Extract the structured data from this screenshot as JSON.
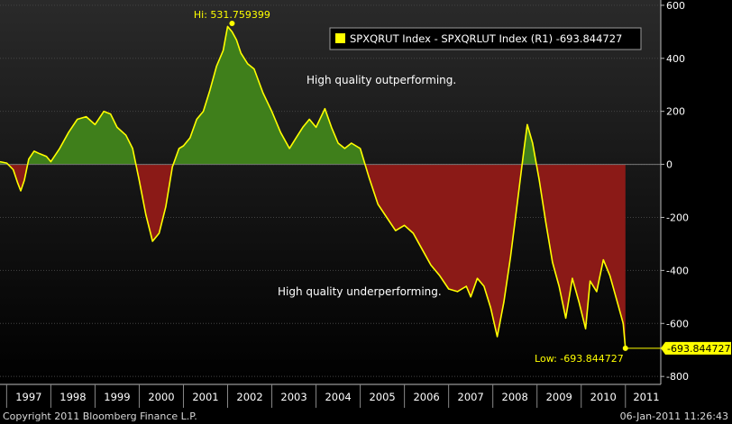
{
  "chart_data": {
    "type": "area",
    "series": [
      {
        "name": "SPXQRUT Index - SPXQRLUT Index (R1)",
        "last_value_label": "-693.844727",
        "x": [
          1996.85,
          1997.0,
          1997.15,
          1997.25,
          1997.32,
          1997.4,
          1997.5,
          1997.62,
          1997.75,
          1997.9,
          1998.0,
          1998.2,
          1998.4,
          1998.6,
          1998.8,
          1999.0,
          1999.2,
          1999.35,
          1999.5,
          1999.7,
          1999.85,
          2000.0,
          2000.15,
          2000.3,
          2000.45,
          2000.6,
          2000.75,
          2000.9,
          2001.0,
          2001.15,
          2001.3,
          2001.45,
          2001.6,
          2001.75,
          2001.9,
          2002.0,
          2002.1,
          2002.2,
          2002.3,
          2002.45,
          2002.6,
          2002.8,
          2003.0,
          2003.2,
          2003.4,
          2003.55,
          2003.7,
          2003.85,
          2004.0,
          2004.2,
          2004.35,
          2004.5,
          2004.65,
          2004.8,
          2005.0,
          2005.2,
          2005.4,
          2005.6,
          2005.8,
          2006.0,
          2006.2,
          2006.4,
          2006.6,
          2006.8,
          2007.0,
          2007.2,
          2007.4,
          2007.5,
          2007.65,
          2007.8,
          2007.95,
          2008.1,
          2008.25,
          2008.4,
          2008.55,
          2008.7,
          2008.78,
          2008.9,
          2009.05,
          2009.2,
          2009.35,
          2009.5,
          2009.65,
          2009.8,
          2009.95,
          2010.1,
          2010.2,
          2010.35,
          2010.5,
          2010.65,
          2010.8,
          2010.95,
          2011.0
        ],
        "values": [
          10,
          5,
          -20,
          -70,
          -100,
          -60,
          20,
          50,
          40,
          30,
          10,
          60,
          120,
          170,
          180,
          150,
          200,
          190,
          140,
          110,
          60,
          -60,
          -190,
          -290,
          -260,
          -160,
          -10,
          60,
          70,
          100,
          170,
          200,
          280,
          370,
          430,
          520,
          500,
          470,
          420,
          380,
          360,
          270,
          200,
          120,
          60,
          100,
          140,
          170,
          140,
          210,
          140,
          80,
          60,
          80,
          60,
          -50,
          -150,
          -200,
          -250,
          -230,
          -260,
          -320,
          -380,
          -420,
          -470,
          -480,
          -460,
          -500,
          -430,
          -460,
          -540,
          -650,
          -520,
          -350,
          -150,
          50,
          150,
          80,
          -60,
          -220,
          -370,
          -460,
          -580,
          -430,
          -520,
          -620,
          -440,
          -480,
          -360,
          -420,
          -510,
          -600,
          -694
        ]
      }
    ],
    "xlim": [
      1996.85,
      2011.8
    ],
    "ylim": [
      -830,
      620
    ],
    "y_ticks": [
      600,
      400,
      200,
      0,
      -200,
      -400,
      -600,
      -800
    ],
    "x_tick_labels": [
      "1997",
      "1998",
      "1999",
      "2000",
      "2001",
      "2002",
      "2003",
      "2004",
      "2005",
      "2006",
      "2007",
      "2008",
      "2009",
      "2010",
      "2011"
    ],
    "title": "",
    "xlabel": "",
    "ylabel": "",
    "legend": {
      "label": "SPXQRUT Index - SPXQRLUT Index (R1) -693.844727",
      "position": "top-right"
    },
    "annotations": {
      "high": {
        "label": "Hi: 531.759399",
        "x": 2002.1,
        "y": 531.76
      },
      "low": {
        "label": "Low: -693.844727",
        "x": 2011.0,
        "y": -693.84
      },
      "last_value_tag": "-693.844727",
      "outperform": "High quality outperforming.",
      "underperform": "High quality underperforming."
    },
    "grid": true,
    "colors": {
      "line": "#ffff00",
      "positive_fill": "#3f7f1b",
      "negative_fill": "#8b1a17",
      "background": "#000000",
      "grid": "#444444",
      "text": "#ffffff"
    }
  },
  "footer": {
    "copyright": "Copyright 2011 Bloomberg Finance L.P.",
    "timestamp": "06-Jan-2011 11:26:43"
  }
}
